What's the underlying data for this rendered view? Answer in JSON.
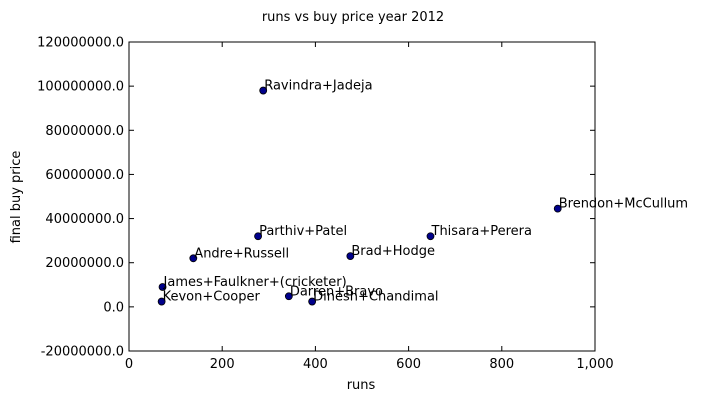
{
  "chart_data": {
    "type": "scatter",
    "title": "runs vs buy price year 2012",
    "xlabel": "runs",
    "ylabel": "final buy price",
    "xlim": [
      0,
      1000
    ],
    "ylim": [
      -20000000,
      120000000
    ],
    "x_ticks": [
      0,
      200,
      400,
      600,
      800,
      1000
    ],
    "x_tick_labels": [
      "0",
      "200",
      "400",
      "600",
      "800",
      "1,000"
    ],
    "y_ticks": [
      -20000000,
      0,
      20000000,
      40000000,
      60000000,
      80000000,
      100000000,
      120000000
    ],
    "y_tick_labels": [
      "-20000000.0",
      "0.0",
      "20000000.0",
      "40000000.0",
      "60000000.0",
      "80000000.0",
      "100000000.0",
      "120000000.0"
    ],
    "grid": false,
    "marker_color": "#00008b",
    "points": [
      {
        "label": "Ravindra+Jadeja",
        "x": 288,
        "y": 98000000
      },
      {
        "label": "Brendon+McCullum",
        "x": 920,
        "y": 44500000
      },
      {
        "label": "Thisara+Perera",
        "x": 647,
        "y": 32000000
      },
      {
        "label": "Parthiv+Patel",
        "x": 277,
        "y": 32000000
      },
      {
        "label": "Brad+Hodge",
        "x": 475,
        "y": 23000000
      },
      {
        "label": "Andre+Russell",
        "x": 138,
        "y": 22000000
      },
      {
        "label": "James+Faulkner+(cricketer)",
        "x": 72,
        "y": 9000000
      },
      {
        "label": "Darren+Bravo",
        "x": 343,
        "y": 4800000
      },
      {
        "label": "Dinesh+Chandimal",
        "x": 393,
        "y": 2400000
      },
      {
        "label": "Kevon+Cooper",
        "x": 70,
        "y": 2400000
      }
    ]
  }
}
